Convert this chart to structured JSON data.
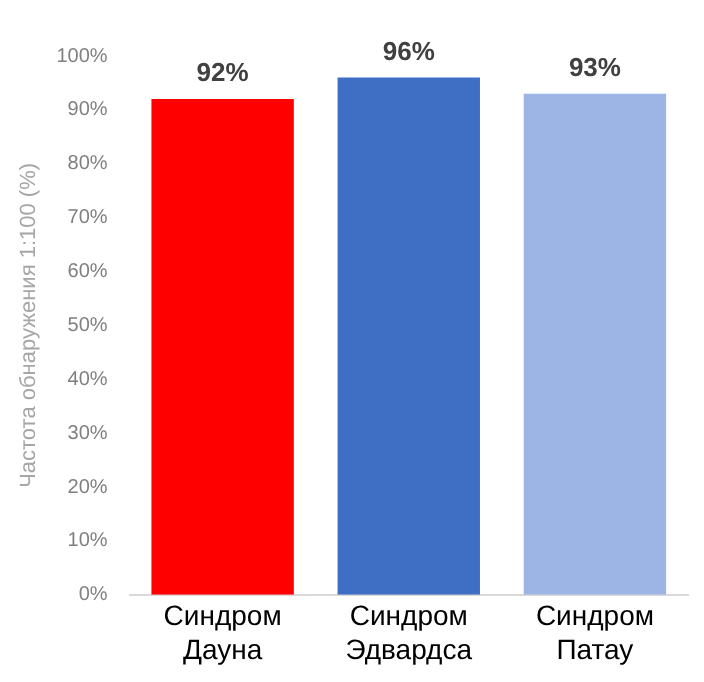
{
  "chart_data": {
    "type": "bar",
    "ylabel": "Частота обнаружения 1:100 (%)",
    "categories": [
      "Синдром Дауна",
      "Синдром Эдвардса",
      "Синдром Патау"
    ],
    "values": [
      92,
      96,
      93
    ],
    "colors": [
      "#ff0000",
      "#3f6fc4",
      "#9db5e5"
    ],
    "value_labels": [
      "92%",
      "96%",
      "93%"
    ],
    "ylim": [
      0,
      100
    ],
    "yticks": [
      {
        "value": 0,
        "label": "0%"
      },
      {
        "value": 10,
        "label": "10%"
      },
      {
        "value": 20,
        "label": "20%"
      },
      {
        "value": 30,
        "label": "30%"
      },
      {
        "value": 40,
        "label": "40%"
      },
      {
        "value": 50,
        "label": "50%"
      },
      {
        "value": 60,
        "label": "60%"
      },
      {
        "value": 70,
        "label": "70%"
      },
      {
        "value": 80,
        "label": "80%"
      },
      {
        "value": 90,
        "label": "90%"
      },
      {
        "value": 100,
        "label": "100%"
      }
    ],
    "grid": false,
    "legend": false
  }
}
